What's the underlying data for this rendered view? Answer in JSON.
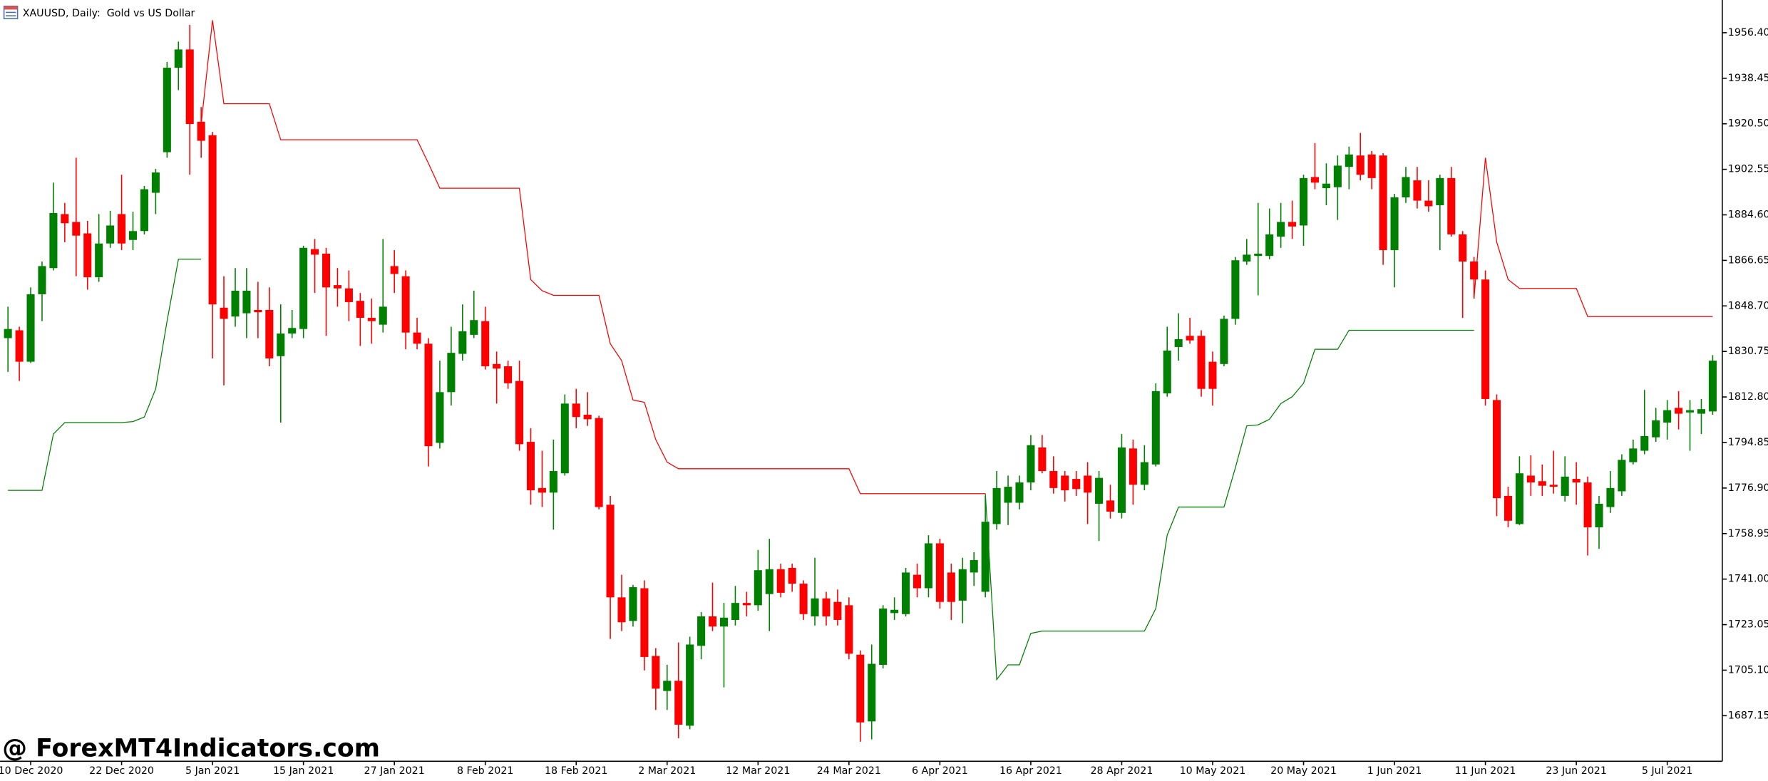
{
  "chart_data": {
    "type": "candlestick",
    "title": "XAUUSD, Daily:  Gold vs US Dollar",
    "watermark": "@ ForexMT4Indicators.com",
    "categories": [
      null,
      null,
      "10 Dec 2020",
      null,
      null,
      null,
      null,
      null,
      null,
      null,
      "22 Dec 2020",
      null,
      null,
      null,
      null,
      null,
      null,
      null,
      "5 Jan 2021",
      null,
      null,
      null,
      null,
      null,
      null,
      null,
      "15 Jan 2021",
      null,
      null,
      null,
      null,
      null,
      null,
      null,
      "27 Jan 2021",
      null,
      null,
      null,
      null,
      null,
      null,
      null,
      "8 Feb 2021",
      null,
      null,
      null,
      null,
      null,
      null,
      null,
      "18 Feb 2021",
      null,
      null,
      null,
      null,
      null,
      null,
      null,
      "2 Mar 2021",
      null,
      null,
      null,
      null,
      null,
      null,
      null,
      "12 Mar 2021",
      null,
      null,
      null,
      null,
      null,
      null,
      null,
      "24 Mar 2021",
      null,
      null,
      null,
      null,
      null,
      null,
      null,
      "6 Apr 2021",
      null,
      null,
      null,
      null,
      null,
      null,
      null,
      "16 Apr 2021",
      null,
      null,
      null,
      null,
      null,
      null,
      null,
      "28 Apr 2021",
      null,
      null,
      null,
      null,
      null,
      null,
      null,
      "10 May 2021",
      null,
      null,
      null,
      null,
      null,
      null,
      null,
      "20 May 2021",
      null,
      null,
      null,
      null,
      null,
      null,
      null,
      "1 Jun 2021",
      null,
      null,
      null,
      null,
      null,
      null,
      null,
      "11 Jun 2021",
      null,
      null,
      null,
      null,
      null,
      null,
      null,
      "23 Jun 2021",
      null,
      null,
      null,
      null,
      null,
      null,
      null,
      "5 Jul 2021",
      null,
      null,
      null,
      null
    ],
    "open": [
      1836.0,
      1839.1,
      1826.7,
      1853.3,
      1863.6,
      1884.9,
      1881.8,
      1877.3,
      1860.0,
      1873.3,
      1884.9,
      1874.7,
      1878.2,
      1893.3,
      1909.3,
      1942.6,
      1949.8,
      1921.3,
      1916.0,
      1848.0,
      1844.5,
      1845.8,
      1847.1,
      1847.1,
      1828.9,
      1837.8,
      1839.6,
      1871.1,
      1869.3,
      1856.9,
      1855.6,
      1850.7,
      1844.0,
      1841.3,
      1864.4,
      1860.4,
      1838.2,
      1833.8,
      1794.7,
      1814.7,
      1829.8,
      1837.3,
      1842.7,
      1825.8,
      1824.9,
      1819.1,
      1795.1,
      1776.9,
      1775.1,
      1782.7,
      1810.2,
      1805.8,
      1804.5,
      1770.3,
      1733.8,
      1724.5,
      1737.4,
      1710.7,
      1696.9,
      1700.9,
      1683.2,
      1714.7,
      1726.3,
      1722.3,
      1724.9,
      1731.6,
      1730.7,
      1735.1,
      1744.9,
      1745.4,
      1739.2,
      1726.3,
      1733.4,
      1732.0,
      1730.7,
      1711.2,
      1684.9,
      1707.2,
      1727.6,
      1727.2,
      1742.7,
      1737.4,
      1755.1,
      1743.6,
      1732.5,
      1743.6,
      1736.0,
      1762.7,
      1771.1,
      1771.1,
      1779.1,
      1792.9,
      1783.6,
      1781.8,
      1780.5,
      1781.8,
      1770.7,
      1772.0,
      1767.1,
      1792.5,
      1778.2,
      1786.2,
      1814.2,
      1832.5,
      1836.9,
      1836.9,
      1826.7,
      1825.8,
      1843.6,
      1866.2,
      1868.4,
      1868.4,
      1876.0,
      1881.8,
      1880.4,
      1899.5,
      1895.1,
      1895.5,
      1903.5,
      1908.0,
      1908.4,
      1908.0,
      1870.7,
      1891.5,
      1898.2,
      1890.2,
      1888.4,
      1899.1,
      1876.9,
      1866.2,
      1859.1,
      1811.6,
      1773.8,
      1762.7,
      1781.8,
      1779.6,
      1778.2,
      1773.8,
      1780.5,
      1779.1,
      1761.4,
      1769.4,
      1775.6,
      1787.1,
      1791.6,
      1796.9,
      1802.7,
      1808.5,
      1806.7,
      1806.2,
      1807.1
    ],
    "high": [
      1848.4,
      1840.5,
      1856.0,
      1866.2,
      1897.3,
      1889.3,
      1907.1,
      1882.2,
      1884.9,
      1886.2,
      1900.4,
      1885.8,
      1896.0,
      1902.7,
      1944.9,
      1952.9,
      1959.5,
      1927.1,
      1917.3,
      1860.4,
      1863.6,
      1863.6,
      1858.2,
      1856.0,
      1849.3,
      1847.1,
      1872.4,
      1875.1,
      1871.6,
      1863.6,
      1862.7,
      1853.8,
      1851.6,
      1875.1,
      1870.7,
      1862.7,
      1844.0,
      1836.0,
      1827.1,
      1840.5,
      1849.3,
      1854.7,
      1848.4,
      1830.7,
      1827.1,
      1827.1,
      1800.5,
      1791.6,
      1796.0,
      1813.8,
      1816.0,
      1814.7,
      1805.4,
      1773.8,
      1742.7,
      1738.7,
      1740.5,
      1713.8,
      1707.2,
      1716.0,
      1718.3,
      1728.0,
      1739.6,
      1731.6,
      1738.3,
      1736.0,
      1752.5,
      1756.9,
      1747.1,
      1747.1,
      1740.5,
      1749.4,
      1736.0,
      1736.9,
      1733.8,
      1712.9,
      1715.2,
      1730.7,
      1733.8,
      1745.4,
      1747.1,
      1758.3,
      1756.9,
      1747.1,
      1749.4,
      1751.6,
      1773.8,
      1783.6,
      1781.8,
      1781.8,
      1797.8,
      1797.8,
      1789.4,
      1783.6,
      1783.6,
      1787.1,
      1783.6,
      1778.2,
      1798.2,
      1796.0,
      1793.8,
      1818.2,
      1840.5,
      1845.8,
      1844.0,
      1839.1,
      1830.7,
      1844.9,
      1868.0,
      1875.1,
      1889.3,
      1887.1,
      1889.3,
      1890.2,
      1900.4,
      1912.9,
      1904.9,
      1908.0,
      1911.5,
      1916.9,
      1909.8,
      1908.9,
      1892.9,
      1903.5,
      1903.5,
      1898.2,
      1900.4,
      1903.5,
      1878.2,
      1868.0,
      1862.7,
      1813.8,
      1777.4,
      1789.4,
      1789.8,
      1786.2,
      1791.6,
      1789.4,
      1787.1,
      1781.4,
      1773.8,
      1783.6,
      1790.2,
      1796.0,
      1815.6,
      1808.5,
      1811.6,
      1815.1,
      1811.6,
      1812.0,
      1829.3
    ],
    "low": [
      1822.7,
      1819.1,
      1826.2,
      1842.7,
      1862.7,
      1873.8,
      1860.4,
      1855.1,
      1858.2,
      1871.6,
      1870.7,
      1870.7,
      1876.9,
      1884.9,
      1907.1,
      1933.8,
      1900.4,
      1907.1,
      1828.0,
      1817.4,
      1840.5,
      1836.0,
      1836.0,
      1824.9,
      1802.7,
      1836.0,
      1836.0,
      1853.8,
      1836.9,
      1848.4,
      1842.7,
      1832.9,
      1833.8,
      1838.2,
      1853.8,
      1831.6,
      1831.6,
      1785.4,
      1792.5,
      1809.4,
      1827.1,
      1836.0,
      1823.6,
      1810.2,
      1816.0,
      1791.6,
      1770.3,
      1769.4,
      1760.5,
      1781.8,
      1800.5,
      1801.4,
      1768.5,
      1717.4,
      1720.5,
      1722.3,
      1705.0,
      1689.4,
      1689.4,
      1678.3,
      1681.8,
      1709.4,
      1720.5,
      1698.3,
      1722.7,
      1726.3,
      1728.5,
      1720.5,
      1733.8,
      1736.0,
      1724.9,
      1722.7,
      1722.7,
      1722.7,
      1709.4,
      1676.9,
      1677.8,
      1705.8,
      1724.9,
      1726.3,
      1733.8,
      1733.8,
      1729.4,
      1724.9,
      1723.6,
      1738.3,
      1733.8,
      1760.5,
      1762.3,
      1768.5,
      1776.0,
      1782.7,
      1774.7,
      1771.6,
      1773.8,
      1762.7,
      1756.0,
      1764.9,
      1764.9,
      1770.3,
      1776.0,
      1785.4,
      1812.9,
      1827.1,
      1833.8,
      1812.9,
      1809.4,
      1824.9,
      1841.3,
      1864.9,
      1852.9,
      1867.1,
      1871.6,
      1875.1,
      1872.4,
      1894.7,
      1888.4,
      1882.6,
      1894.7,
      1898.2,
      1894.7,
      1864.9,
      1856.0,
      1889.3,
      1887.1,
      1885.8,
      1870.7,
      1876.0,
      1844.0,
      1851.6,
      1809.4,
      1765.8,
      1761.4,
      1762.3,
      1773.8,
      1773.8,
      1774.7,
      1771.6,
      1770.3,
      1750.3,
      1752.9,
      1767.1,
      1773.8,
      1786.2,
      1790.2,
      1795.1,
      1796.0,
      1800.0,
      1791.6,
      1798.2,
      1805.8
    ],
    "close": [
      1839.6,
      1826.7,
      1853.3,
      1864.4,
      1885.3,
      1881.3,
      1876.4,
      1860.0,
      1873.3,
      1880.4,
      1873.3,
      1878.2,
      1894.7,
      1901.3,
      1942.6,
      1949.8,
      1920.4,
      1913.8,
      1849.3,
      1843.6,
      1854.7,
      1854.7,
      1846.2,
      1828.0,
      1837.8,
      1840.0,
      1871.6,
      1868.9,
      1856.0,
      1855.6,
      1850.2,
      1844.0,
      1842.7,
      1848.4,
      1861.3,
      1838.2,
      1833.8,
      1793.4,
      1814.7,
      1830.2,
      1838.7,
      1843.1,
      1824.9,
      1824.0,
      1818.2,
      1794.2,
      1776.0,
      1775.1,
      1783.6,
      1810.2,
      1804.9,
      1804.0,
      1769.4,
      1733.8,
      1724.0,
      1737.8,
      1710.3,
      1697.8,
      1700.9,
      1683.6,
      1715.2,
      1726.3,
      1722.3,
      1725.8,
      1731.6,
      1730.7,
      1744.5,
      1744.9,
      1735.6,
      1739.2,
      1727.2,
      1733.4,
      1726.3,
      1724.9,
      1711.6,
      1684.5,
      1707.6,
      1729.4,
      1728.9,
      1743.6,
      1737.4,
      1755.1,
      1732.0,
      1732.0,
      1744.9,
      1748.5,
      1763.6,
      1776.9,
      1777.4,
      1779.1,
      1793.8,
      1783.6,
      1776.9,
      1776.0,
      1776.5,
      1775.1,
      1780.9,
      1767.6,
      1792.9,
      1778.2,
      1787.1,
      1815.1,
      1831.1,
      1835.6,
      1835.1,
      1816.0,
      1816.0,
      1843.6,
      1866.7,
      1868.9,
      1869.3,
      1876.9,
      1881.8,
      1880.0,
      1899.1,
      1897.3,
      1896.9,
      1904.0,
      1908.4,
      1900.4,
      1899.1,
      1870.7,
      1891.5,
      1899.5,
      1890.2,
      1888.0,
      1899.1,
      1876.9,
      1866.2,
      1859.1,
      1812.0,
      1772.9,
      1764.0,
      1782.7,
      1779.1,
      1777.8,
      1777.4,
      1781.4,
      1779.1,
      1761.4,
      1770.7,
      1776.9,
      1788.0,
      1792.5,
      1797.4,
      1803.6,
      1807.6,
      1806.2,
      1807.6,
      1808.0,
      1827.1
    ],
    "up_color": "#008000",
    "down_color": "#ff0000",
    "lines": [
      {
        "color": "#ff0000",
        "values": [
          null,
          null,
          null,
          null,
          null,
          null,
          null,
          null,
          null,
          null,
          null,
          null,
          null,
          null,
          null,
          null,
          null,
          1920.4,
          1961.3,
          1928.4,
          1928.4,
          1928.4,
          1928.4,
          1928.4,
          1914.2,
          1914.2,
          1914.2,
          1914.2,
          1914.2,
          1914.2,
          1914.2,
          1914.2,
          1914.2,
          1914.2,
          1914.2,
          1914.2,
          1914.2,
          1904.9,
          1895.1,
          1895.1,
          1895.1,
          1895.1,
          1895.1,
          1895.1,
          1895.1,
          1895.1,
          1859.1,
          1854.7,
          1852.9,
          1852.9,
          1852.9,
          1852.9,
          1852.9,
          1833.8,
          1827.1,
          1811.6,
          1810.7,
          1796.0,
          1787.1,
          1784.5,
          1784.5,
          1784.5,
          1784.5,
          1784.5,
          1784.5,
          1784.5,
          1784.5,
          1784.5,
          1784.5,
          1784.5,
          1784.5,
          1784.5,
          1784.5,
          1784.5,
          1784.5,
          1774.7,
          1774.7,
          1774.7,
          1774.7,
          1774.7,
          1774.7,
          1774.7,
          1774.7,
          1774.7,
          1774.7,
          1774.7,
          1774.7,
          null,
          null,
          null,
          null,
          null,
          null,
          null,
          null,
          null,
          null,
          null,
          null,
          null,
          null,
          null,
          null,
          null,
          null,
          null,
          null,
          null,
          null,
          null,
          null,
          null,
          null,
          null,
          null,
          null,
          null,
          null,
          null,
          null,
          null,
          null,
          null,
          null,
          null,
          null,
          null,
          null,
          null,
          1851.6,
          1907.1,
          1873.8,
          1859.1,
          1855.6,
          1855.6,
          1855.6,
          1855.6,
          1855.6,
          1855.6,
          1844.5,
          1844.5,
          1844.5,
          1844.5,
          1844.5,
          1844.5,
          1844.5,
          1844.5,
          1844.5,
          1844.5,
          1844.5,
          1844.5
        ]
      },
      {
        "color": "#008000",
        "values": [
          1776.0,
          1776.0,
          1776.0,
          1776.0,
          1798.2,
          1802.7,
          1802.7,
          1802.7,
          1802.7,
          1802.7,
          1802.7,
          1803.1,
          1804.9,
          1816.0,
          1842.7,
          1867.1,
          1867.1,
          1867.1,
          null,
          null,
          null,
          null,
          null,
          null,
          null,
          null,
          null,
          null,
          null,
          null,
          null,
          null,
          null,
          null,
          null,
          null,
          null,
          null,
          null,
          null,
          null,
          null,
          null,
          null,
          null,
          null,
          null,
          null,
          null,
          null,
          null,
          null,
          null,
          null,
          null,
          null,
          null,
          null,
          null,
          null,
          null,
          null,
          null,
          null,
          null,
          null,
          null,
          null,
          null,
          null,
          null,
          null,
          null,
          null,
          null,
          null,
          null,
          null,
          null,
          null,
          null,
          null,
          null,
          null,
          null,
          null,
          1774.7,
          1701.4,
          1707.2,
          1707.2,
          1719.6,
          1720.5,
          1720.5,
          1720.5,
          1720.5,
          1720.5,
          1720.5,
          1720.5,
          1720.5,
          1720.5,
          1720.5,
          1729.4,
          1758.3,
          1769.4,
          1769.4,
          1769.4,
          1769.4,
          1769.4,
          1784.9,
          1801.4,
          1801.8,
          1804.0,
          1810.2,
          1812.9,
          1818.2,
          1831.6,
          1831.6,
          1831.6,
          1839.1,
          1839.1,
          1839.1,
          1839.1,
          1839.1,
          1839.1,
          1839.1,
          1839.1,
          1839.1,
          1839.1,
          1839.1,
          1839.1,
          null,
          null,
          null,
          null,
          null,
          null,
          null,
          null,
          null,
          null,
          null,
          null,
          null,
          null,
          null,
          null,
          null,
          null,
          null,
          null,
          null
        ]
      }
    ],
    "ylim": [
      1669.4,
      1969.3
    ],
    "yticks": [
      {
        "value": 1956.4,
        "label": "1956.40"
      },
      {
        "value": 1938.45,
        "label": "1938.45"
      },
      {
        "value": 1920.5,
        "label": "1920.50"
      },
      {
        "value": 1902.55,
        "label": "1902.55"
      },
      {
        "value": 1884.6,
        "label": "1884.60"
      },
      {
        "value": 1866.65,
        "label": "1866.65"
      },
      {
        "value": 1848.7,
        "label": "1848.70"
      },
      {
        "value": 1830.75,
        "label": "1830.75"
      },
      {
        "value": 1812.8,
        "label": "1812.80"
      },
      {
        "value": 1794.85,
        "label": "1794.85"
      },
      {
        "value": 1776.9,
        "label": "1776.90"
      },
      {
        "value": 1758.95,
        "label": "1758.95"
      },
      {
        "value": 1741,
        "label": "1741.00"
      },
      {
        "value": 1723.05,
        "label": "1723.05"
      },
      {
        "value": 1705.1,
        "label": "1705.10"
      },
      {
        "value": 1687.15,
        "label": "1687.15"
      }
    ]
  }
}
